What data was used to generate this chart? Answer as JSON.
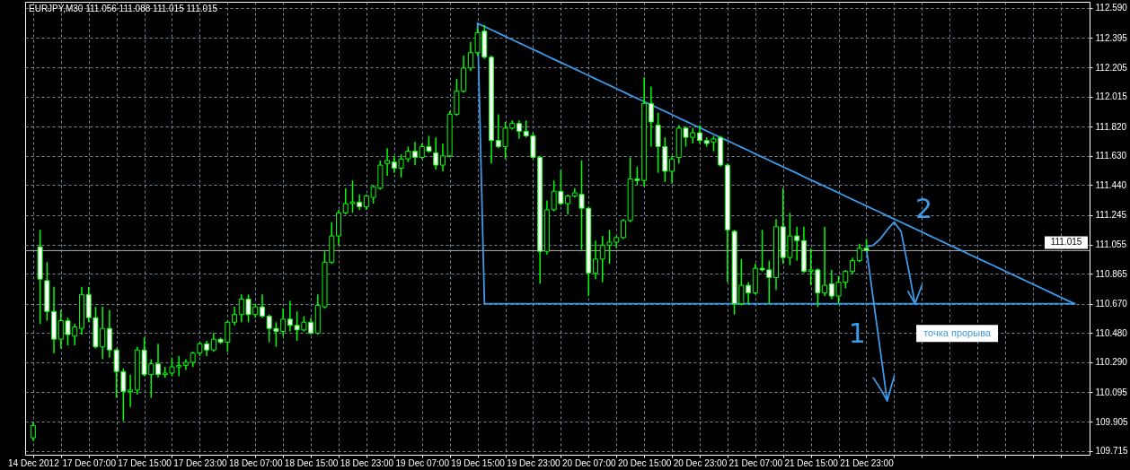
{
  "chart_data": {
    "type": "candlestick",
    "title": "EURJPY,M30  111.056 111.088 111.015 111.015",
    "categories": [
      "14 Dec 2012",
      null,
      null,
      null,
      null,
      null,
      null,
      null,
      "17 Dec 07:00",
      null,
      null,
      null,
      null,
      null,
      null,
      null,
      "17 Dec 15:00",
      null,
      null,
      null,
      null,
      null,
      null,
      null,
      "17 Dec 23:00",
      null,
      null,
      null,
      null,
      null,
      null,
      null,
      "18 Dec 07:00",
      null,
      null,
      null,
      null,
      null,
      null,
      null,
      "18 Dec 15:00",
      null,
      null,
      null,
      null,
      null,
      null,
      null,
      "18 Dec 23:00",
      null,
      null,
      null,
      null,
      null,
      null,
      null,
      "19 Dec 07:00",
      null,
      null,
      null,
      null,
      null,
      null,
      null,
      "19 Dec 15:00",
      null,
      null,
      null,
      null,
      null,
      null,
      null,
      "19 Dec 23:00",
      null,
      null,
      null,
      null,
      null,
      null,
      null,
      "20 Dec 07:00",
      null,
      null,
      null,
      null,
      null,
      null,
      null,
      "20 Dec 15:00",
      null,
      null,
      null,
      null,
      null,
      null,
      null,
      "20 Dec 23:00",
      null,
      null,
      null,
      null,
      null,
      null,
      null,
      "21 Dec 07:00",
      null,
      null,
      null,
      null,
      null,
      null,
      null,
      "21 Dec 15:00",
      null,
      null,
      null,
      null,
      null,
      null,
      null,
      "21 Dec 23:00",
      null,
      null,
      null,
      null,
      null,
      null,
      null,
      null,
      null,
      null,
      null,
      null,
      null,
      null,
      null,
      null,
      null,
      null,
      null,
      null,
      null,
      null,
      null,
      null,
      null,
      null,
      null,
      null,
      null,
      null,
      null
    ],
    "ohlc": [
      [
        109.8,
        109.9,
        109.78,
        109.88
      ],
      [
        111.04,
        111.15,
        110.54,
        110.83
      ],
      [
        110.82,
        110.94,
        110.56,
        110.62
      ],
      [
        110.62,
        110.78,
        110.35,
        110.44
      ],
      [
        110.44,
        110.63,
        110.38,
        110.56
      ],
      [
        110.56,
        110.58,
        110.4,
        110.47
      ],
      [
        110.46,
        110.54,
        110.4,
        110.52
      ],
      [
        110.51,
        110.78,
        110.47,
        110.73
      ],
      [
        110.73,
        110.78,
        110.55,
        110.58
      ],
      [
        110.58,
        110.65,
        110.38,
        110.39
      ],
      [
        110.39,
        110.65,
        110.31,
        110.51
      ],
      [
        110.51,
        110.63,
        110.32,
        110.37
      ],
      [
        110.37,
        110.38,
        110.06,
        110.23
      ],
      [
        110.23,
        110.25,
        109.91,
        110.1
      ],
      [
        110.1,
        110.21,
        110.0,
        110.11
      ],
      [
        110.11,
        110.39,
        110.08,
        110.37
      ],
      [
        110.37,
        110.45,
        110.2,
        110.21
      ],
      [
        110.21,
        110.31,
        110.06,
        110.28
      ],
      [
        110.28,
        110.41,
        110.19,
        110.21
      ],
      [
        110.21,
        110.26,
        110.19,
        110.22
      ],
      [
        110.22,
        110.32,
        110.2,
        110.26
      ],
      [
        110.26,
        110.33,
        110.2,
        110.27
      ],
      [
        110.27,
        110.31,
        110.24,
        110.29
      ],
      [
        110.29,
        110.36,
        110.26,
        110.35
      ],
      [
        110.35,
        110.42,
        110.33,
        110.41
      ],
      [
        110.41,
        110.43,
        110.33,
        110.37
      ],
      [
        110.37,
        110.48,
        110.36,
        110.44
      ],
      [
        110.44,
        110.45,
        110.41,
        110.42
      ],
      [
        110.42,
        110.56,
        110.36,
        110.55
      ],
      [
        110.55,
        110.65,
        110.53,
        110.6
      ],
      [
        110.6,
        110.73,
        110.55,
        110.7
      ],
      [
        110.7,
        110.73,
        110.55,
        110.6
      ],
      [
        110.6,
        110.67,
        110.58,
        110.65
      ],
      [
        110.65,
        110.73,
        110.58,
        110.59
      ],
      [
        110.59,
        110.6,
        110.42,
        110.51
      ],
      [
        110.51,
        110.55,
        110.39,
        110.49
      ],
      [
        110.49,
        110.64,
        110.46,
        110.57
      ],
      [
        110.57,
        110.69,
        110.49,
        110.53
      ],
      [
        110.53,
        110.62,
        110.43,
        110.5
      ],
      [
        110.5,
        110.59,
        110.49,
        110.55
      ],
      [
        110.55,
        110.58,
        110.47,
        110.48
      ],
      [
        110.48,
        110.73,
        110.47,
        110.66
      ],
      [
        110.65,
        111.01,
        110.64,
        110.94
      ],
      [
        110.94,
        111.2,
        110.93,
        111.11
      ],
      [
        111.11,
        111.28,
        111.05,
        111.26
      ],
      [
        111.26,
        111.42,
        111.25,
        111.32
      ],
      [
        111.32,
        111.47,
        111.26,
        111.33
      ],
      [
        111.33,
        111.38,
        111.28,
        111.3
      ],
      [
        111.3,
        111.38,
        111.28,
        111.37
      ],
      [
        111.36,
        111.44,
        111.32,
        111.43
      ],
      [
        111.42,
        111.6,
        111.41,
        111.57
      ],
      [
        111.58,
        111.68,
        111.5,
        111.6
      ],
      [
        111.59,
        111.63,
        111.52,
        111.55
      ],
      [
        111.55,
        111.64,
        111.49,
        111.61
      ],
      [
        111.61,
        111.69,
        111.59,
        111.66
      ],
      [
        111.66,
        111.72,
        111.57,
        111.62
      ],
      [
        111.62,
        111.71,
        111.61,
        111.69
      ],
      [
        111.69,
        111.76,
        111.65,
        111.66
      ],
      [
        111.65,
        111.75,
        111.54,
        111.57
      ],
      [
        111.57,
        111.71,
        111.53,
        111.63
      ],
      [
        111.63,
        111.92,
        111.62,
        111.9
      ],
      [
        111.9,
        112.13,
        111.89,
        112.05
      ],
      [
        112.05,
        112.28,
        112.04,
        112.2
      ],
      [
        112.2,
        112.37,
        112.18,
        112.3
      ],
      [
        112.3,
        112.46,
        112.28,
        112.43
      ],
      [
        112.44,
        112.48,
        112.26,
        112.27
      ],
      [
        112.27,
        112.28,
        111.58,
        111.73
      ],
      [
        111.73,
        111.9,
        111.68,
        111.69
      ],
      [
        111.69,
        111.85,
        111.61,
        111.81
      ],
      [
        111.81,
        111.86,
        111.8,
        111.84
      ],
      [
        111.84,
        111.86,
        111.74,
        111.79
      ],
      [
        111.79,
        111.86,
        111.75,
        111.76
      ],
      [
        111.76,
        111.78,
        111.61,
        111.62
      ],
      [
        111.62,
        111.63,
        110.8,
        111.01
      ],
      [
        111.01,
        111.34,
        110.99,
        111.28
      ],
      [
        111.28,
        111.47,
        111.27,
        111.4
      ],
      [
        111.4,
        111.54,
        111.31,
        111.32
      ],
      [
        111.32,
        111.38,
        111.25,
        111.37
      ],
      [
        111.37,
        111.42,
        111.36,
        111.39
      ],
      [
        111.38,
        111.6,
        111.02,
        111.29
      ],
      [
        111.29,
        111.3,
        110.72,
        110.87
      ],
      [
        110.87,
        111.08,
        110.83,
        110.96
      ],
      [
        110.96,
        111.11,
        110.81,
        111.05
      ],
      [
        111.05,
        111.15,
        110.93,
        111.07
      ],
      [
        111.07,
        111.11,
        111.03,
        111.1
      ],
      [
        111.1,
        111.22,
        111.09,
        111.21
      ],
      [
        111.21,
        111.62,
        111.2,
        111.48
      ],
      [
        111.48,
        111.56,
        111.44,
        111.47
      ],
      [
        111.47,
        112.14,
        111.43,
        111.97
      ],
      [
        111.97,
        112.08,
        111.69,
        111.85
      ],
      [
        111.83,
        111.91,
        111.52,
        111.69
      ],
      [
        111.69,
        111.75,
        111.46,
        111.53
      ],
      [
        111.53,
        111.63,
        111.45,
        111.61
      ],
      [
        111.62,
        111.83,
        111.58,
        111.81
      ],
      [
        111.81,
        111.82,
        111.69,
        111.75
      ],
      [
        111.75,
        111.81,
        111.71,
        111.78
      ],
      [
        111.78,
        111.83,
        111.71,
        111.73
      ],
      [
        111.73,
        111.75,
        111.69,
        111.71
      ],
      [
        111.72,
        111.76,
        111.66,
        111.74
      ],
      [
        111.75,
        111.76,
        111.56,
        111.57
      ],
      [
        111.57,
        111.58,
        110.81,
        111.15
      ],
      [
        111.14,
        111.15,
        110.6,
        110.67
      ],
      [
        110.67,
        110.96,
        110.66,
        110.79
      ],
      [
        110.79,
        110.81,
        110.67,
        110.74
      ],
      [
        110.74,
        110.93,
        110.73,
        110.9
      ],
      [
        110.9,
        111.15,
        110.88,
        110.89
      ],
      [
        110.89,
        110.95,
        110.67,
        110.84
      ],
      [
        110.84,
        111.22,
        110.76,
        111.17
      ],
      [
        111.17,
        111.42,
        110.93,
        110.97
      ],
      [
        110.97,
        111.26,
        110.92,
        111.11
      ],
      [
        111.11,
        111.17,
        110.95,
        111.08
      ],
      [
        111.08,
        111.17,
        110.87,
        110.88
      ],
      [
        110.88,
        111.03,
        110.79,
        110.89
      ],
      [
        110.89,
        110.9,
        110.65,
        110.74
      ],
      [
        110.74,
        111.17,
        110.72,
        110.79
      ],
      [
        110.8,
        110.89,
        110.7,
        110.72
      ],
      [
        110.72,
        110.85,
        110.67,
        110.81
      ],
      [
        110.81,
        110.89,
        110.77,
        110.88
      ],
      [
        110.88,
        110.97,
        110.86,
        110.95
      ],
      [
        110.95,
        111.06,
        110.94,
        111.03
      ],
      [
        111.03,
        111.09,
        111.01,
        111.015
      ],
      null,
      null,
      null,
      null,
      null,
      null,
      null,
      null,
      null,
      null,
      null,
      null,
      null,
      null,
      null,
      null,
      null,
      null,
      null,
      null,
      null,
      null,
      null,
      null,
      null,
      null,
      null,
      null,
      null,
      null,
      null
    ],
    "color": "#00ff00",
    "colors": [
      "#000000",
      "#ffffff",
      "#ffffff",
      "#ffffff",
      "#000000",
      "#ffffff",
      "#000000",
      "#000000",
      "#ffffff",
      "#ffffff",
      "#000000",
      "#ffffff",
      "#ffffff",
      "#ffffff",
      "#000000",
      "#000000",
      "#ffffff",
      "#000000",
      "#ffffff",
      "#000000",
      "#000000",
      "#000000",
      "#000000",
      "#000000",
      "#000000",
      "#ffffff",
      "#000000",
      "#ffffff",
      "#000000",
      "#000000",
      "#000000",
      "#ffffff",
      "#000000",
      "#ffffff",
      "#ffffff",
      "#ffffff",
      "#000000",
      "#ffffff",
      "#ffffff",
      "#000000",
      "#ffffff",
      "#000000",
      "#000000",
      "#000000",
      "#000000",
      "#000000",
      "#000000",
      "#ffffff",
      "#000000",
      "#000000",
      "#000000",
      "#000000",
      "#ffffff",
      "#000000",
      "#000000",
      "#ffffff",
      "#000000",
      "#ffffff",
      "#ffffff",
      "#000000",
      "#000000",
      "#000000",
      "#000000",
      "#000000",
      "#000000",
      "#ffffff",
      "#ffffff",
      "#ffffff",
      "#000000",
      "#000000",
      "#ffffff",
      "#ffffff",
      "#ffffff",
      "#ffffff",
      "#000000",
      "#000000",
      "#ffffff",
      "#000000",
      "#000000",
      "#ffffff",
      "#ffffff",
      "#000000",
      "#000000",
      "#000000",
      "#000000",
      "#000000",
      "#000000",
      "#ffffff",
      "#000000",
      "#ffffff",
      "#ffffff",
      "#ffffff",
      "#000000",
      "#000000",
      "#ffffff",
      "#000000",
      "#ffffff",
      "#ffffff",
      "#000000",
      "#ffffff",
      "#ffffff",
      "#ffffff",
      "#000000",
      "#ffffff",
      "#000000",
      "#ffffff",
      "#ffffff",
      "#000000",
      "#ffffff",
      "#000000",
      "#ffffff",
      "#ffffff",
      "#000000",
      "#ffffff",
      "#000000",
      "#ffffff",
      "#000000",
      "#000000",
      "#000000",
      "#000000",
      "#ffffff",
      null,
      null,
      null,
      null,
      null,
      null,
      null,
      null,
      null,
      null,
      null,
      null,
      null,
      null,
      null,
      null,
      null,
      null,
      null,
      null,
      null,
      null,
      null,
      null,
      null,
      null,
      null,
      null,
      null,
      null,
      null
    ],
    "ylim": [
      109.69,
      112.63
    ],
    "yticks": [
      {
        "value": 112.59,
        "label": "112.590"
      },
      112.395,
      112.205,
      112.015,
      {
        "value": 111.82,
        "label": "111.820"
      },
      {
        "value": 111.63,
        "label": "111.630"
      },
      {
        "value": 111.44,
        "label": "111.440"
      },
      111.245,
      111.055,
      110.865,
      {
        "value": 110.67,
        "label": "110.670"
      },
      {
        "value": 110.48,
        "label": "110.480"
      },
      {
        "value": 110.29,
        "label": "110.290"
      },
      110.095,
      109.905,
      109.715
    ],
    "grid": true,
    "series": [
      {
        "type": "line",
        "color": "#3d9ae8",
        "values": [
          null,
          null,
          null,
          null,
          null,
          null,
          null,
          null,
          null,
          null,
          null,
          null,
          null,
          null,
          null,
          null,
          null,
          null,
          null,
          null,
          null,
          null,
          null,
          null,
          null,
          null,
          null,
          null,
          null,
          null,
          null,
          null,
          null,
          null,
          null,
          null,
          null,
          null,
          null,
          null,
          null,
          null,
          null,
          null,
          null,
          null,
          null,
          null,
          null,
          null,
          null,
          null,
          null,
          null,
          null,
          null,
          null,
          null,
          null,
          null,
          null,
          null,
          null,
          null,
          112.49,
          112.469,
          112.448,
          112.427,
          112.405,
          112.384,
          112.363,
          112.342,
          112.321,
          112.3,
          112.278,
          112.257,
          112.236,
          112.215,
          112.194,
          112.173,
          112.151,
          112.13,
          112.109,
          112.088,
          112.067,
          112.046,
          112.024,
          112.003,
          111.982,
          111.961,
          111.94,
          111.919,
          111.898,
          111.876,
          111.855,
          111.834,
          111.813,
          111.792,
          111.77,
          111.749,
          111.728,
          111.707,
          111.686,
          111.665,
          111.643,
          111.622,
          111.601,
          111.58,
          111.559,
          111.538,
          111.517,
          111.495,
          111.474,
          111.453,
          111.432,
          111.411,
          111.39,
          111.368,
          111.347,
          111.326,
          111.305,
          111.284,
          111.263,
          111.241,
          111.22,
          111.199,
          111.178,
          111.157,
          111.136,
          111.114,
          111.093,
          111.072,
          111.051,
          111.03,
          111.009,
          110.987,
          110.966,
          110.945,
          110.924,
          110.903,
          110.882,
          110.86,
          110.839,
          110.818,
          110.797,
          110.776,
          110.755,
          110.733,
          110.712,
          110.691,
          110.67,
          null
        ]
      },
      {
        "type": "line",
        "color": "#3d9ae8",
        "values": [
          null,
          null,
          null,
          null,
          null,
          null,
          null,
          null,
          null,
          null,
          null,
          null,
          null,
          null,
          null,
          null,
          null,
          null,
          null,
          null,
          null,
          null,
          null,
          null,
          null,
          null,
          null,
          null,
          null,
          null,
          null,
          null,
          null,
          null,
          null,
          null,
          null,
          null,
          null,
          null,
          null,
          null,
          null,
          null,
          null,
          null,
          null,
          null,
          null,
          null,
          null,
          null,
          null,
          null,
          null,
          null,
          null,
          null,
          null,
          null,
          null,
          null,
          null,
          null,
          112.49,
          110.67,
          110.67,
          110.67,
          110.67,
          110.67,
          110.67,
          110.67,
          110.67,
          110.67,
          110.67,
          110.67,
          110.67,
          110.67,
          110.67,
          110.67,
          110.67,
          110.67,
          110.67,
          110.67,
          110.67,
          110.67,
          110.67,
          110.67,
          110.67,
          110.67,
          110.67,
          110.67,
          110.67,
          110.67,
          110.67,
          110.67,
          110.67,
          110.67,
          110.67,
          110.67,
          110.67,
          110.67,
          110.67,
          110.67,
          110.67,
          110.67,
          110.67,
          110.67,
          110.67,
          110.67,
          110.67,
          110.67,
          110.67,
          110.67,
          110.67,
          110.67,
          110.67,
          110.67,
          110.67,
          110.67,
          110.67,
          110.67,
          110.67,
          110.67,
          110.67,
          110.67,
          110.67,
          110.67,
          110.67,
          110.67,
          110.67,
          110.67,
          110.67,
          110.67,
          110.67,
          110.67,
          110.67,
          110.67,
          110.67,
          110.67,
          110.67,
          110.67,
          110.67,
          110.67,
          110.67,
          110.67,
          110.67,
          110.67,
          110.67,
          110.67,
          110.67,
          null
        ]
      },
      {
        "type": "line",
        "color": "#3d9ae8",
        "values": [
          null,
          null,
          null,
          null,
          null,
          null,
          null,
          null,
          null,
          null,
          null,
          null,
          null,
          null,
          null,
          null,
          null,
          null,
          null,
          null,
          null,
          null,
          null,
          null,
          null,
          null,
          null,
          null,
          null,
          null,
          null,
          null,
          null,
          null,
          null,
          null,
          null,
          null,
          null,
          null,
          null,
          null,
          null,
          null,
          null,
          null,
          null,
          null,
          null,
          null,
          null,
          null,
          null,
          null,
          null,
          null,
          null,
          null,
          null,
          null,
          null,
          null,
          null,
          null,
          null,
          null,
          null,
          null,
          null,
          null,
          null,
          null,
          null,
          null,
          null,
          null,
          null,
          null,
          null,
          null,
          null,
          null,
          null,
          null,
          null,
          null,
          null,
          null,
          null,
          null,
          null,
          null,
          null,
          null,
          null,
          null,
          null,
          null,
          null,
          null,
          null,
          null,
          null,
          null,
          null,
          null,
          null,
          null,
          null,
          null,
          null,
          null,
          null,
          null,
          null,
          null,
          null,
          null,
          null,
          null,
          111.03,
          110.7,
          110.37,
          110.04,
          110.2,
          null,
          null,
          null,
          null,
          null,
          null,
          null,
          null,
          null,
          null,
          null,
          null,
          null,
          null,
          null,
          null,
          null,
          null,
          null,
          null,
          null,
          null,
          null,
          null,
          null,
          null,
          null
        ]
      },
      {
        "type": "line",
        "color": "#3d9ae8",
        "values": [
          null,
          null,
          null,
          null,
          null,
          null,
          null,
          null,
          null,
          null,
          null,
          null,
          null,
          null,
          null,
          null,
          null,
          null,
          null,
          null,
          null,
          null,
          null,
          null,
          null,
          null,
          null,
          null,
          null,
          null,
          null,
          null,
          null,
          null,
          null,
          null,
          null,
          null,
          null,
          null,
          null,
          null,
          null,
          null,
          null,
          null,
          null,
          null,
          null,
          null,
          null,
          null,
          null,
          null,
          null,
          null,
          null,
          null,
          null,
          null,
          null,
          null,
          null,
          null,
          null,
          null,
          null,
          null,
          null,
          null,
          null,
          null,
          null,
          null,
          null,
          null,
          null,
          null,
          null,
          null,
          null,
          null,
          null,
          null,
          null,
          null,
          null,
          null,
          null,
          null,
          null,
          null,
          null,
          null,
          null,
          null,
          null,
          null,
          null,
          null,
          null,
          null,
          null,
          null,
          null,
          null,
          null,
          null,
          null,
          null,
          null,
          null,
          null,
          null,
          null,
          null,
          null,
          null,
          null,
          null,
          null,
          110.19,
          110.12,
          110.04,
          null,
          null,
          null,
          null,
          null,
          null,
          null,
          null,
          null,
          null,
          null,
          null,
          null,
          null,
          null,
          null,
          null,
          null,
          null,
          null,
          null,
          null,
          null,
          null,
          null,
          null,
          null,
          null
        ]
      },
      {
        "type": "line",
        "color": "#3d9ae8",
        "values": [
          null,
          null,
          null,
          null,
          null,
          null,
          null,
          null,
          null,
          null,
          null,
          null,
          null,
          null,
          null,
          null,
          null,
          null,
          null,
          null,
          null,
          null,
          null,
          null,
          null,
          null,
          null,
          null,
          null,
          null,
          null,
          null,
          null,
          null,
          null,
          null,
          null,
          null,
          null,
          null,
          null,
          null,
          null,
          null,
          null,
          null,
          null,
          null,
          null,
          null,
          null,
          null,
          null,
          null,
          null,
          null,
          null,
          null,
          null,
          null,
          null,
          null,
          null,
          null,
          null,
          null,
          null,
          null,
          null,
          null,
          null,
          null,
          null,
          null,
          null,
          null,
          null,
          null,
          null,
          null,
          null,
          null,
          null,
          null,
          null,
          null,
          null,
          null,
          null,
          null,
          null,
          null,
          null,
          null,
          null,
          null,
          null,
          null,
          null,
          null,
          null,
          null,
          null,
          null,
          null,
          null,
          null,
          null,
          null,
          null,
          null,
          null,
          null,
          null,
          null,
          null,
          null,
          null,
          null,
          null,
          111.04,
          111.05,
          111.09,
          111.15,
          111.2,
          111.14,
          110.91,
          110.67,
          110.79,
          null,
          null,
          null,
          null,
          null,
          null,
          null,
          null,
          null,
          null,
          null,
          null,
          null,
          null,
          null,
          null,
          null,
          null,
          null,
          null,
          null,
          null,
          null
        ]
      },
      {
        "type": "line",
        "color": "#3d9ae8",
        "values": [
          null,
          null,
          null,
          null,
          null,
          null,
          null,
          null,
          null,
          null,
          null,
          null,
          null,
          null,
          null,
          null,
          null,
          null,
          null,
          null,
          null,
          null,
          null,
          null,
          null,
          null,
          null,
          null,
          null,
          null,
          null,
          null,
          null,
          null,
          null,
          null,
          null,
          null,
          null,
          null,
          null,
          null,
          null,
          null,
          null,
          null,
          null,
          null,
          null,
          null,
          null,
          null,
          null,
          null,
          null,
          null,
          null,
          null,
          null,
          null,
          null,
          null,
          null,
          null,
          null,
          null,
          null,
          null,
          null,
          null,
          null,
          null,
          null,
          null,
          null,
          null,
          null,
          null,
          null,
          null,
          null,
          null,
          null,
          null,
          null,
          null,
          null,
          null,
          null,
          null,
          null,
          null,
          null,
          null,
          null,
          null,
          null,
          null,
          null,
          null,
          null,
          null,
          null,
          null,
          null,
          null,
          null,
          null,
          null,
          null,
          null,
          null,
          null,
          null,
          null,
          null,
          null,
          null,
          null,
          null,
          null,
          null,
          null,
          null,
          null,
          null,
          110.75,
          110.67,
          null,
          null,
          null,
          null,
          null,
          null,
          null,
          null,
          null,
          null,
          null,
          null,
          null,
          null,
          null,
          null,
          null,
          null,
          null,
          null,
          null,
          null,
          null,
          null
        ]
      }
    ],
    "ref_lines": [
      {
        "axis": "y",
        "value": 111.015,
        "label": "111.015",
        "color": "#b0b0b0"
      }
    ],
    "annotations": [
      "точка прорыва",
      "1",
      "2"
    ]
  }
}
